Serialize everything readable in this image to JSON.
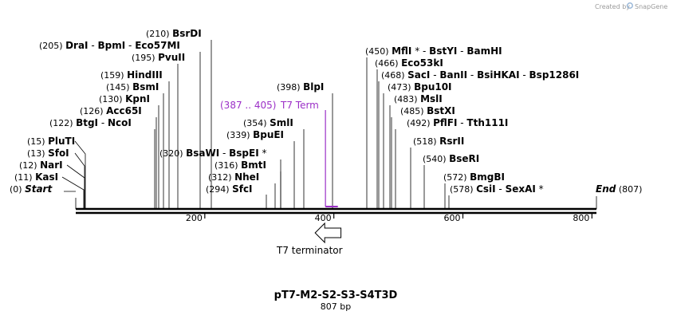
{
  "credit": {
    "text": "Created by",
    "brand": "SnapGene"
  },
  "title": "pT7-M2-S2-S3-S4T3D",
  "length_label": "807 bp",
  "length_bp": 807,
  "axis_ticks": [
    "200",
    "400",
    "600",
    "800"
  ],
  "colors": {
    "terminator": "#9b2fc7",
    "line": "#000000"
  },
  "features": [
    {
      "name": "T7 terminator",
      "direction": "reverse",
      "start": 371,
      "end": 411
    }
  ],
  "terminator_annotation": {
    "range": "(387 .. 405)",
    "name": "T7 Term",
    "start": 387,
    "end": 405
  },
  "sites": [
    {
      "id": "start",
      "pos": "(0)",
      "segments": [
        {
          "t": "Start",
          "italic": true
        }
      ],
      "bp": 0
    },
    {
      "id": "kasi",
      "pos": "(11)",
      "segments": [
        {
          "t": "KasI"
        }
      ],
      "bp": 11
    },
    {
      "id": "nari",
      "pos": "(12)",
      "segments": [
        {
          "t": "NarI"
        }
      ],
      "bp": 12
    },
    {
      "id": "sfoi",
      "pos": "(13)",
      "segments": [
        {
          "t": "SfoI"
        }
      ],
      "bp": 13
    },
    {
      "id": "pluti",
      "pos": "(15)",
      "segments": [
        {
          "t": "PluTI"
        }
      ],
      "bp": 15
    },
    {
      "id": "btgi",
      "pos": "(122)",
      "segments": [
        {
          "t": "BtgI"
        },
        {
          "t": "  -  ",
          "plain": true
        },
        {
          "t": "NcoI"
        }
      ],
      "bp": 122
    },
    {
      "id": "acc65i",
      "pos": "(126)",
      "segments": [
        {
          "t": "Acc65I"
        }
      ],
      "bp": 126
    },
    {
      "id": "kpni",
      "pos": "(130)",
      "segments": [
        {
          "t": "KpnI"
        }
      ],
      "bp": 130
    },
    {
      "id": "bsmi",
      "pos": "(145)",
      "segments": [
        {
          "t": "BsmI"
        }
      ],
      "bp": 145
    },
    {
      "id": "hindiii",
      "pos": "(159)",
      "segments": [
        {
          "t": "HindIII"
        }
      ],
      "bp": 159
    },
    {
      "id": "pvuii",
      "pos": "(195)",
      "segments": [
        {
          "t": "PvuII"
        }
      ],
      "bp": 195
    },
    {
      "id": "drai",
      "pos": "(205)",
      "segments": [
        {
          "t": "DraI"
        },
        {
          "t": "  -  ",
          "plain": true
        },
        {
          "t": "BpmI"
        },
        {
          "t": "  -  ",
          "plain": true
        },
        {
          "t": "Eco57MI"
        }
      ],
      "bp": 205
    },
    {
      "id": "bsrdi",
      "pos": "(210)",
      "segments": [
        {
          "t": "BsrDI"
        }
      ],
      "bp": 210
    },
    {
      "id": "sfci",
      "pos": "(294)",
      "segments": [
        {
          "t": "SfcI"
        }
      ],
      "bp": 294
    },
    {
      "id": "nhei",
      "pos": "(312)",
      "segments": [
        {
          "t": "NheI"
        }
      ],
      "bp": 312
    },
    {
      "id": "bmti",
      "pos": "(316)",
      "segments": [
        {
          "t": "BmtI"
        }
      ],
      "bp": 316
    },
    {
      "id": "bsawi",
      "pos": "(320)",
      "segments": [
        {
          "t": "BsaWI"
        },
        {
          "t": "  -  ",
          "plain": true
        },
        {
          "t": "BspEI"
        },
        {
          "t": " *",
          "plain": true
        }
      ],
      "bp": 320
    },
    {
      "id": "bpuei",
      "pos": "(339)",
      "segments": [
        {
          "t": "BpuEI"
        }
      ],
      "bp": 339
    },
    {
      "id": "smli",
      "pos": "(354)",
      "segments": [
        {
          "t": "SmlI"
        }
      ],
      "bp": 354
    },
    {
      "id": "blpi",
      "pos": "(398)",
      "segments": [
        {
          "t": "BlpI"
        }
      ],
      "bp": 398
    },
    {
      "id": "mfli",
      "pos": "(450)",
      "segments": [
        {
          "t": "MflI"
        },
        {
          "t": " *  -  ",
          "plain": true
        },
        {
          "t": "BstYI"
        },
        {
          "t": "  -  ",
          "plain": true
        },
        {
          "t": "BamHI"
        }
      ],
      "bp": 450
    },
    {
      "id": "eco53ki",
      "pos": "(466)",
      "segments": [
        {
          "t": "Eco53kI"
        }
      ],
      "bp": 466
    },
    {
      "id": "saci",
      "pos": "(468)",
      "segments": [
        {
          "t": "SacI"
        },
        {
          "t": "  -  ",
          "plain": true
        },
        {
          "t": "BanII"
        },
        {
          "t": "  -  ",
          "plain": true
        },
        {
          "t": "BsiHKAI"
        },
        {
          "t": "  -  ",
          "plain": true
        },
        {
          "t": "Bsp1286I"
        }
      ],
      "bp": 468
    },
    {
      "id": "bpu10i",
      "pos": "(473)",
      "segments": [
        {
          "t": "Bpu10I"
        }
      ],
      "bp": 473
    },
    {
      "id": "msli",
      "pos": "(483)",
      "segments": [
        {
          "t": "MslI"
        }
      ],
      "bp": 483
    },
    {
      "id": "bstxi",
      "pos": "(485)",
      "segments": [
        {
          "t": "BstXI"
        }
      ],
      "bp": 485
    },
    {
      "id": "pflfi",
      "pos": "(492)",
      "segments": [
        {
          "t": "PflFI"
        },
        {
          "t": "  -  ",
          "plain": true
        },
        {
          "t": "Tth111I"
        }
      ],
      "bp": 492
    },
    {
      "id": "rsrii",
      "pos": "(518)",
      "segments": [
        {
          "t": "RsrII"
        }
      ],
      "bp": 518
    },
    {
      "id": "bseri",
      "pos": "(540)",
      "segments": [
        {
          "t": "BseRI"
        }
      ],
      "bp": 540
    },
    {
      "id": "bmgbi",
      "pos": "(572)",
      "segments": [
        {
          "t": "BmgBI"
        }
      ],
      "bp": 572
    },
    {
      "id": "csii",
      "pos": "(578)",
      "segments": [
        {
          "t": "CsiI"
        },
        {
          "t": "  -  ",
          "plain": true
        },
        {
          "t": "SexAI"
        },
        {
          "t": " *",
          "plain": true
        }
      ],
      "bp": 578
    },
    {
      "id": "end",
      "pos": "(807)",
      "segments": [
        {
          "t": "End",
          "italic": true
        }
      ],
      "bp": 807
    }
  ]
}
